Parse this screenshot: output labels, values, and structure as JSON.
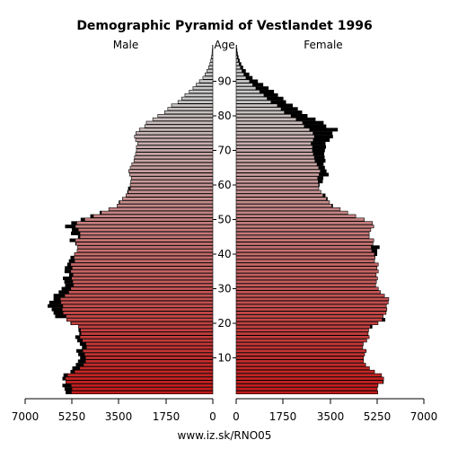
{
  "chart_data": {
    "type": "bar",
    "orientation": "horizontal-pyramid",
    "title": "Demographic Pyramid of Vestlandet 1996",
    "left_label": "Male",
    "center_label": "Age",
    "right_label": "Female",
    "source": "www.iz.sk/RNO05",
    "xlim": [
      0,
      7000
    ],
    "x_ticks": [
      "7000",
      "5250",
      "3500",
      "1750",
      "0"
    ],
    "x_ticks_right": [
      "0",
      "1750",
      "3500",
      "5250",
      "7000"
    ],
    "y_tick_values": [
      10,
      20,
      30,
      40,
      50,
      60,
      70,
      80,
      90
    ],
    "ages": [
      0,
      1,
      2,
      3,
      4,
      5,
      6,
      7,
      8,
      9,
      10,
      11,
      12,
      13,
      14,
      15,
      16,
      17,
      18,
      19,
      20,
      21,
      22,
      23,
      24,
      25,
      26,
      27,
      28,
      29,
      30,
      31,
      32,
      33,
      34,
      35,
      36,
      37,
      38,
      39,
      40,
      41,
      42,
      43,
      44,
      45,
      46,
      47,
      48,
      49,
      50,
      51,
      52,
      53,
      54,
      55,
      56,
      57,
      58,
      59,
      60,
      61,
      62,
      63,
      64,
      65,
      66,
      67,
      68,
      69,
      70,
      71,
      72,
      73,
      74,
      75,
      76,
      77,
      78,
      79,
      80,
      81,
      82,
      83,
      84,
      85,
      86,
      87,
      88,
      89,
      90,
      91,
      92,
      93,
      94,
      95,
      96,
      97,
      98,
      99,
      100
    ],
    "series": [
      {
        "name": "Male",
        "values": [
          5480,
          5520,
          5600,
          5480,
          5600,
          5560,
          5300,
          5230,
          5100,
          5020,
          4940,
          5010,
          5080,
          4870,
          4950,
          5050,
          5120,
          4970,
          5000,
          5010,
          5300,
          5450,
          5870,
          5930,
          6000,
          6150,
          6090,
          5930,
          5930,
          5740,
          5630,
          5500,
          5530,
          5580,
          5350,
          5520,
          5510,
          5420,
          5360,
          5300,
          5160,
          5060,
          5040,
          5120,
          5330,
          5020,
          5280,
          5250,
          5500,
          5270,
          4920,
          4560,
          4210,
          3880,
          3570,
          3500,
          3370,
          3240,
          3180,
          3150,
          3080,
          3060,
          3040,
          3100,
          3140,
          3080,
          3020,
          2940,
          2920,
          2880,
          2850,
          2850,
          2800,
          2880,
          2920,
          2870,
          2740,
          2540,
          2480,
          2240,
          2050,
          1800,
          1680,
          1540,
          1300,
          1160,
          1040,
          880,
          740,
          620,
          500,
          370,
          290,
          220,
          160,
          110,
          75,
          50,
          30,
          18,
          10
        ]
      },
      {
        "name": "Female",
        "values": [
          5280,
          5260,
          5290,
          5490,
          5500,
          5420,
          5160,
          4970,
          4830,
          4750,
          4750,
          4790,
          4850,
          4720,
          4740,
          4870,
          4960,
          4920,
          4940,
          5070,
          5290,
          5550,
          5480,
          5590,
          5620,
          5600,
          5670,
          5690,
          5530,
          5380,
          5300,
          5200,
          5230,
          5270,
          5220,
          5300,
          5250,
          5300,
          5160,
          5180,
          5250,
          5250,
          5340,
          5100,
          5130,
          4960,
          4960,
          5020,
          5130,
          5080,
          4780,
          4460,
          4160,
          3880,
          3600,
          3480,
          3400,
          3320,
          3160,
          3080,
          3100,
          3220,
          3240,
          3440,
          3360,
          3300,
          3250,
          3320,
          3290,
          3270,
          3300,
          3340,
          3320,
          3480,
          3600,
          3580,
          3780,
          3350,
          3250,
          2950,
          2650,
          2450,
          2290,
          2100,
          1850,
          1750,
          1550,
          1400,
          1200,
          1000,
          800,
          600,
          480,
          350,
          250,
          180,
          120,
          80,
          50,
          30,
          15
        ]
      }
    ],
    "colors": {
      "male_base": "#c41a1a",
      "female_base": "#c41a1a",
      "aged": "#c8c8c8",
      "excess": "#000000",
      "outline": "#000000"
    }
  }
}
